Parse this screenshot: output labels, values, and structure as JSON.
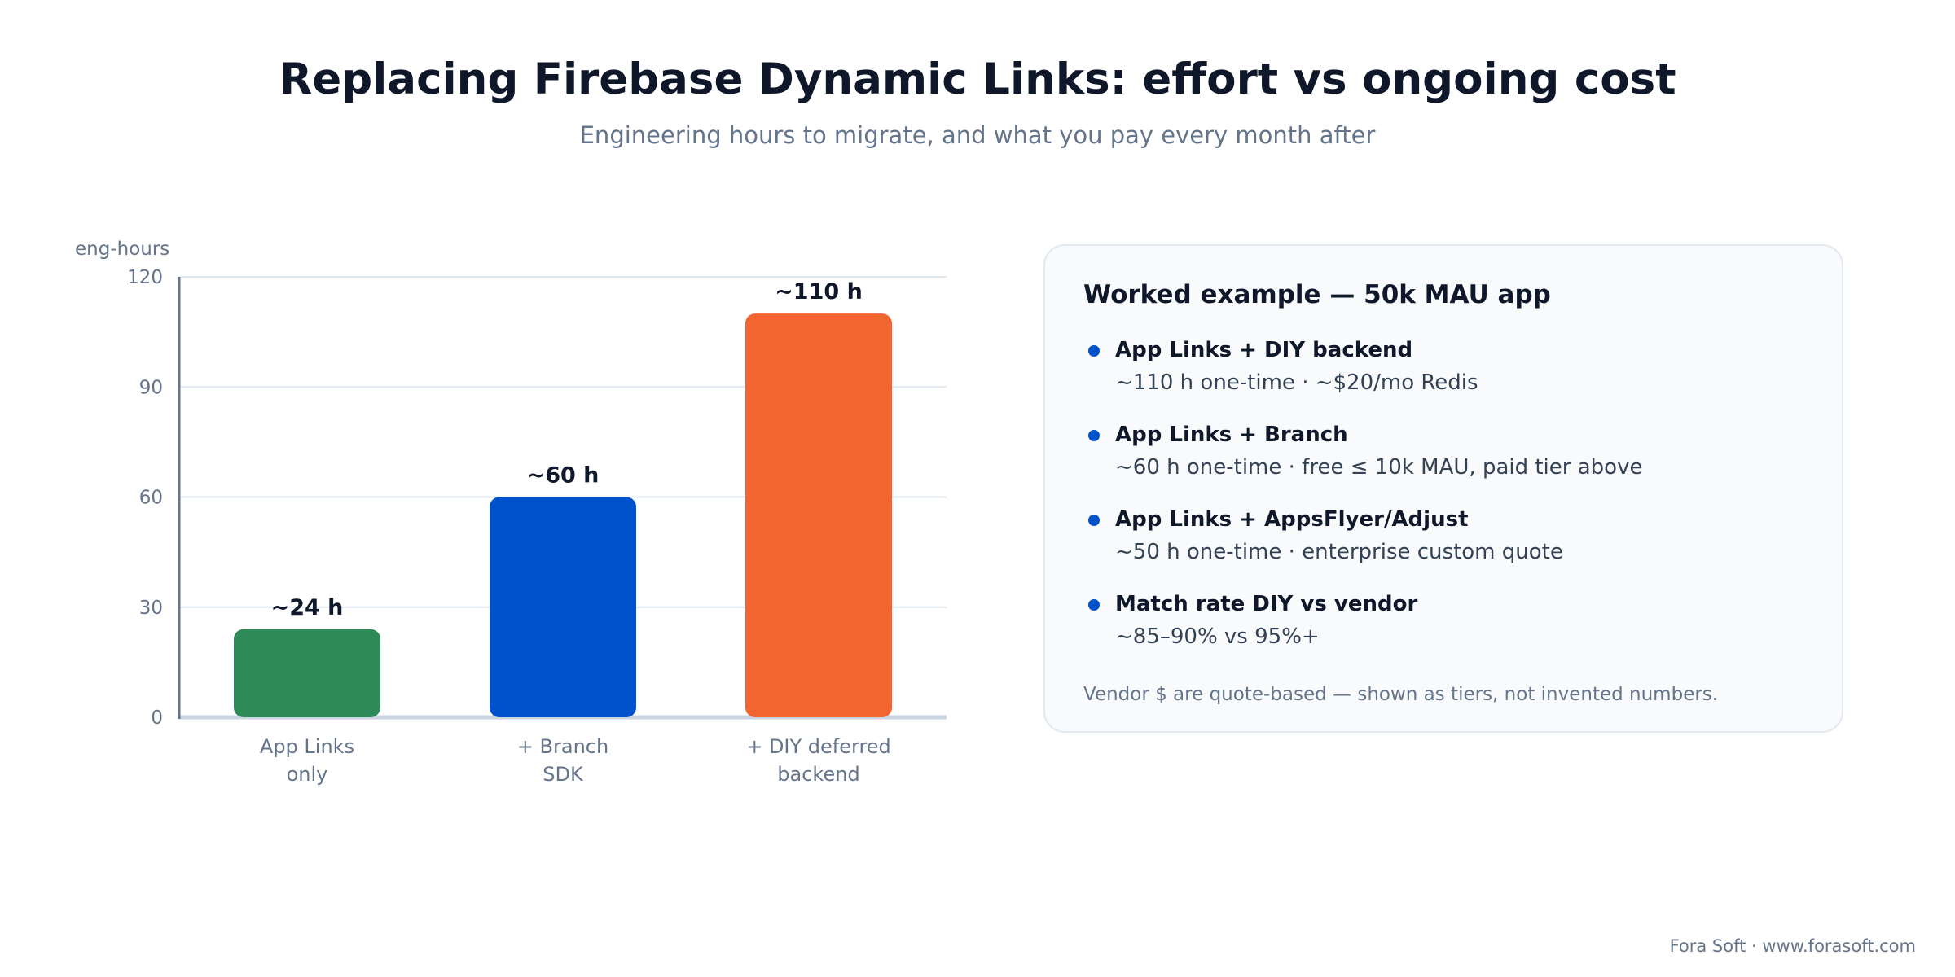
{
  "header": {
    "title": "Replacing Firebase Dynamic Links: effort vs ongoing cost",
    "subtitle": "Engineering hours to migrate, and what you pay every month after"
  },
  "chart_data": {
    "type": "bar",
    "ylabel": "eng-hours",
    "ylim": [
      0,
      120
    ],
    "yticks": [
      0,
      30,
      60,
      90,
      120
    ],
    "grid": true,
    "categories": [
      [
        "App Links",
        "only"
      ],
      [
        "+ Branch",
        "SDK"
      ],
      [
        "+ DIY deferred",
        "backend"
      ]
    ],
    "values": [
      24,
      60,
      110
    ],
    "data_labels": [
      "~24 h",
      "~60 h",
      "~110 h"
    ],
    "colors": [
      "#2e8b57",
      "#0052cc",
      "#f26430"
    ]
  },
  "panel": {
    "title": "Worked example — 50k MAU app",
    "items": [
      {
        "head": "App Links + DIY backend",
        "sub": "~110 h one-time · ~$20/mo Redis"
      },
      {
        "head": "App Links + Branch",
        "sub": "~60 h one-time · free ≤ 10k MAU, paid tier above"
      },
      {
        "head": "App Links + AppsFlyer/Adjust",
        "sub": "~50 h one-time · enterprise custom quote"
      },
      {
        "head": "Match rate DIY vs vendor",
        "sub": "~85–90% vs 95%+"
      }
    ],
    "footnote": "Vendor $ are quote-based — shown as tiers, not invented numbers."
  },
  "footer": {
    "credit": "Fora Soft · www.forasoft.com"
  }
}
